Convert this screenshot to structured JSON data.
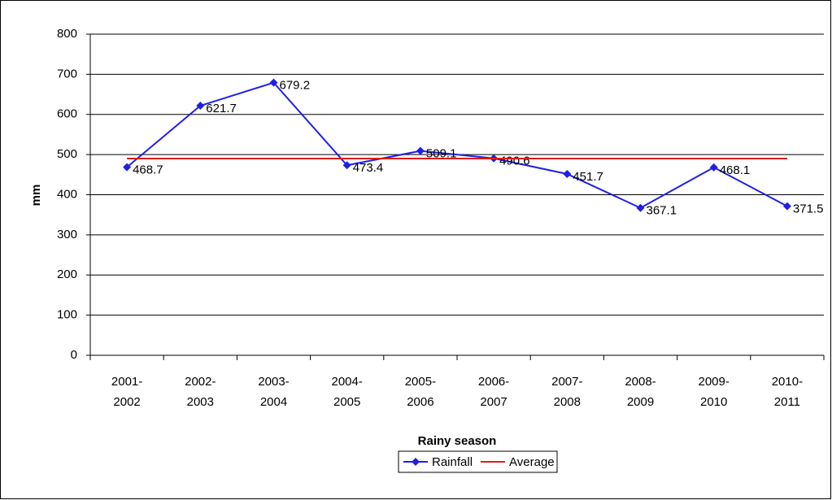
{
  "chart_data": {
    "type": "line",
    "x_label": "Rainy season",
    "y_label": "mm",
    "categories": [
      "2001-2002",
      "2002-2003",
      "2003-2004",
      "2004-2005",
      "2005-2006",
      "2006-2007",
      "2007-2008",
      "2008-2009",
      "2009-2010",
      "2010-2011"
    ],
    "series": [
      {
        "name": "Rainfall",
        "color": "#1f1fe6",
        "marker": "diamond",
        "data_labels": true,
        "values": [
          468.7,
          621.7,
          679.2,
          473.4,
          509.1,
          490.6,
          451.7,
          367.1,
          468.1,
          371.5
        ]
      },
      {
        "name": "Average",
        "color": "#e01b1b",
        "marker": "none",
        "data_labels": false,
        "values": [
          490.1,
          490.1,
          490.1,
          490.1,
          490.1,
          490.1,
          490.1,
          490.1,
          490.1,
          490.1
        ]
      }
    ],
    "ylim": [
      0,
      800
    ],
    "yticks": [
      0,
      100,
      200,
      300,
      400,
      500,
      600,
      700,
      800
    ],
    "grid": true,
    "legend": "bottom"
  }
}
